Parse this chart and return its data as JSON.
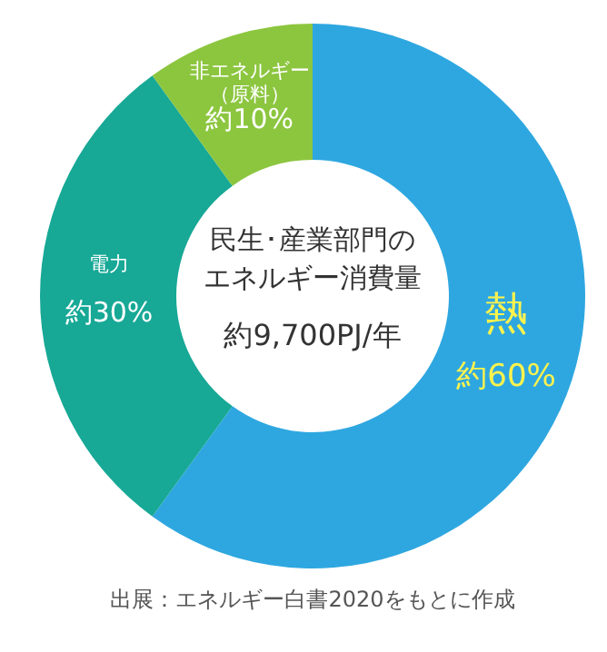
{
  "chart_data": {
    "type": "donut",
    "title": "民生･産業部門のエネルギー消費量",
    "subtitle": "約9,700PJ/年",
    "categories": [
      "熱",
      "電力",
      "非エネルギー（原料）"
    ],
    "values": [
      60,
      30,
      10
    ],
    "value_labels": [
      "約60%",
      "約30%",
      "約10%"
    ],
    "colors": [
      "#2ea7e0",
      "#17a896",
      "#8cc63f"
    ],
    "annotations": [
      "出展：エネルギー白書2020をもとに作成"
    ]
  }
}
